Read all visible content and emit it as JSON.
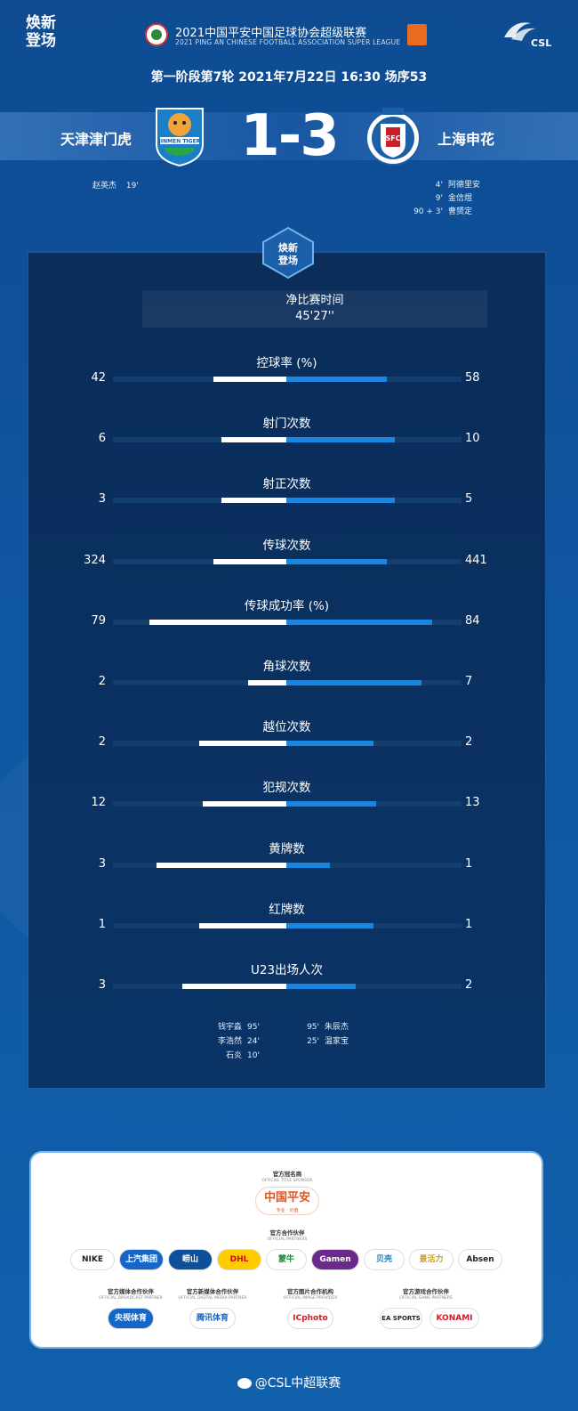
{
  "header": {
    "logo_left_line1": "焕新",
    "logo_left_line2": "登场",
    "league_title": "2021中国平安中国足球协会超级联赛",
    "league_subtitle": "2021 PING AN CHINESE FOOTBALL ASSOCIATION SUPER LEAGUE",
    "csl_text": "CSL",
    "match_info": "第一阶段第7轮  2021年7月22日 16:30 场序53"
  },
  "match": {
    "home_team": "天津津门虎",
    "away_team": "上海申花",
    "score": "1-3",
    "home_crest_text": "JINMEN TIGER",
    "away_crest_text": "SFC",
    "home_scorers": [
      {
        "name": "赵英杰",
        "minute": "19'"
      }
    ],
    "away_scorers": [
      {
        "minute": "4'",
        "name": "阿德里安"
      },
      {
        "minute": "9'",
        "name": "金信煜"
      },
      {
        "minute": "90 + 3'",
        "name": "曹赟定"
      }
    ]
  },
  "emblem": {
    "line1": "焕新",
    "line2": "登场"
  },
  "net_time": {
    "label": "净比赛时间",
    "value": "45'27''"
  },
  "stats": [
    {
      "label": "控球率 (%)",
      "home": "42",
      "away": "58",
      "home_frac": 0.42,
      "away_frac": 0.58
    },
    {
      "label": "射门次数",
      "home": "6",
      "away": "10",
      "home_frac": 0.375,
      "away_frac": 0.625
    },
    {
      "label": "射正次数",
      "home": "3",
      "away": "5",
      "home_frac": 0.375,
      "away_frac": 0.625
    },
    {
      "label": "传球次数",
      "home": "324",
      "away": "441",
      "home_frac": 0.42,
      "away_frac": 0.58
    },
    {
      "label": "传球成功率 (%)",
      "home": "79",
      "away": "84",
      "home_frac": 0.79,
      "away_frac": 0.84
    },
    {
      "label": "角球次数",
      "home": "2",
      "away": "7",
      "home_frac": 0.22,
      "away_frac": 0.78
    },
    {
      "label": "越位次数",
      "home": "2",
      "away": "2",
      "home_frac": 0.5,
      "away_frac": 0.5
    },
    {
      "label": "犯规次数",
      "home": "12",
      "away": "13",
      "home_frac": 0.48,
      "away_frac": 0.52
    },
    {
      "label": "黄牌数",
      "home": "3",
      "away": "1",
      "home_frac": 0.75,
      "away_frac": 0.25
    },
    {
      "label": "红牌数",
      "home": "1",
      "away": "1",
      "home_frac": 0.5,
      "away_frac": 0.5
    },
    {
      "label": "U23出场人次",
      "home": "3",
      "away": "2",
      "home_frac": 0.6,
      "away_frac": 0.4
    }
  ],
  "u23_home": [
    {
      "name": "钱宇淼",
      "minute": "95'"
    },
    {
      "name": "李浩然",
      "minute": "24'"
    },
    {
      "name": "石炎",
      "minute": "10'"
    }
  ],
  "u23_away": [
    {
      "minute": "95'",
      "name": "朱辰杰"
    },
    {
      "minute": "25'",
      "name": "温家宝"
    }
  ],
  "sponsors": {
    "title_sponsor_head": "官方冠名商",
    "title_sponsor_head_en": "OFFICIAL TITLE SPONSOR",
    "title_sponsor": "中国平安",
    "title_sponsor_tag": "专业 · 价值",
    "partners_head": "官方合作伙伴",
    "partners_head_en": "OFFICIAL PARTNERS",
    "partners": [
      "NIKE",
      "上汽集团",
      "崂山",
      "DHL",
      "蒙牛",
      "Gamen",
      "贝壳",
      "景活力",
      "Absen"
    ],
    "broadcast_head": "官方媒体合作伙伴",
    "broadcast_head_en": "OFFICIAL BROADCAST PARTNER",
    "broadcast": "央视体育",
    "digital_head": "官方新媒体合作伙伴",
    "digital_head_en": "OFFICIAL DIGITAL MEDIA PARTNER",
    "digital": "腾讯体育",
    "image_head": "官方图片合作机构",
    "image_head_en": "OFFICIAL IMAGE PROVIDER",
    "image": "ICphoto",
    "game_head": "官方游戏合作伙伴",
    "game_head_en": "OFFICIAL GAME PARTNERS",
    "game1": "EA SPORTS",
    "game2": "KONAMI"
  },
  "footer": {
    "weibo": "@CSL中超联赛"
  },
  "colors": {
    "home_bar": "#ffffff",
    "away_bar": "#1a86e0",
    "track": "#143e6e"
  }
}
